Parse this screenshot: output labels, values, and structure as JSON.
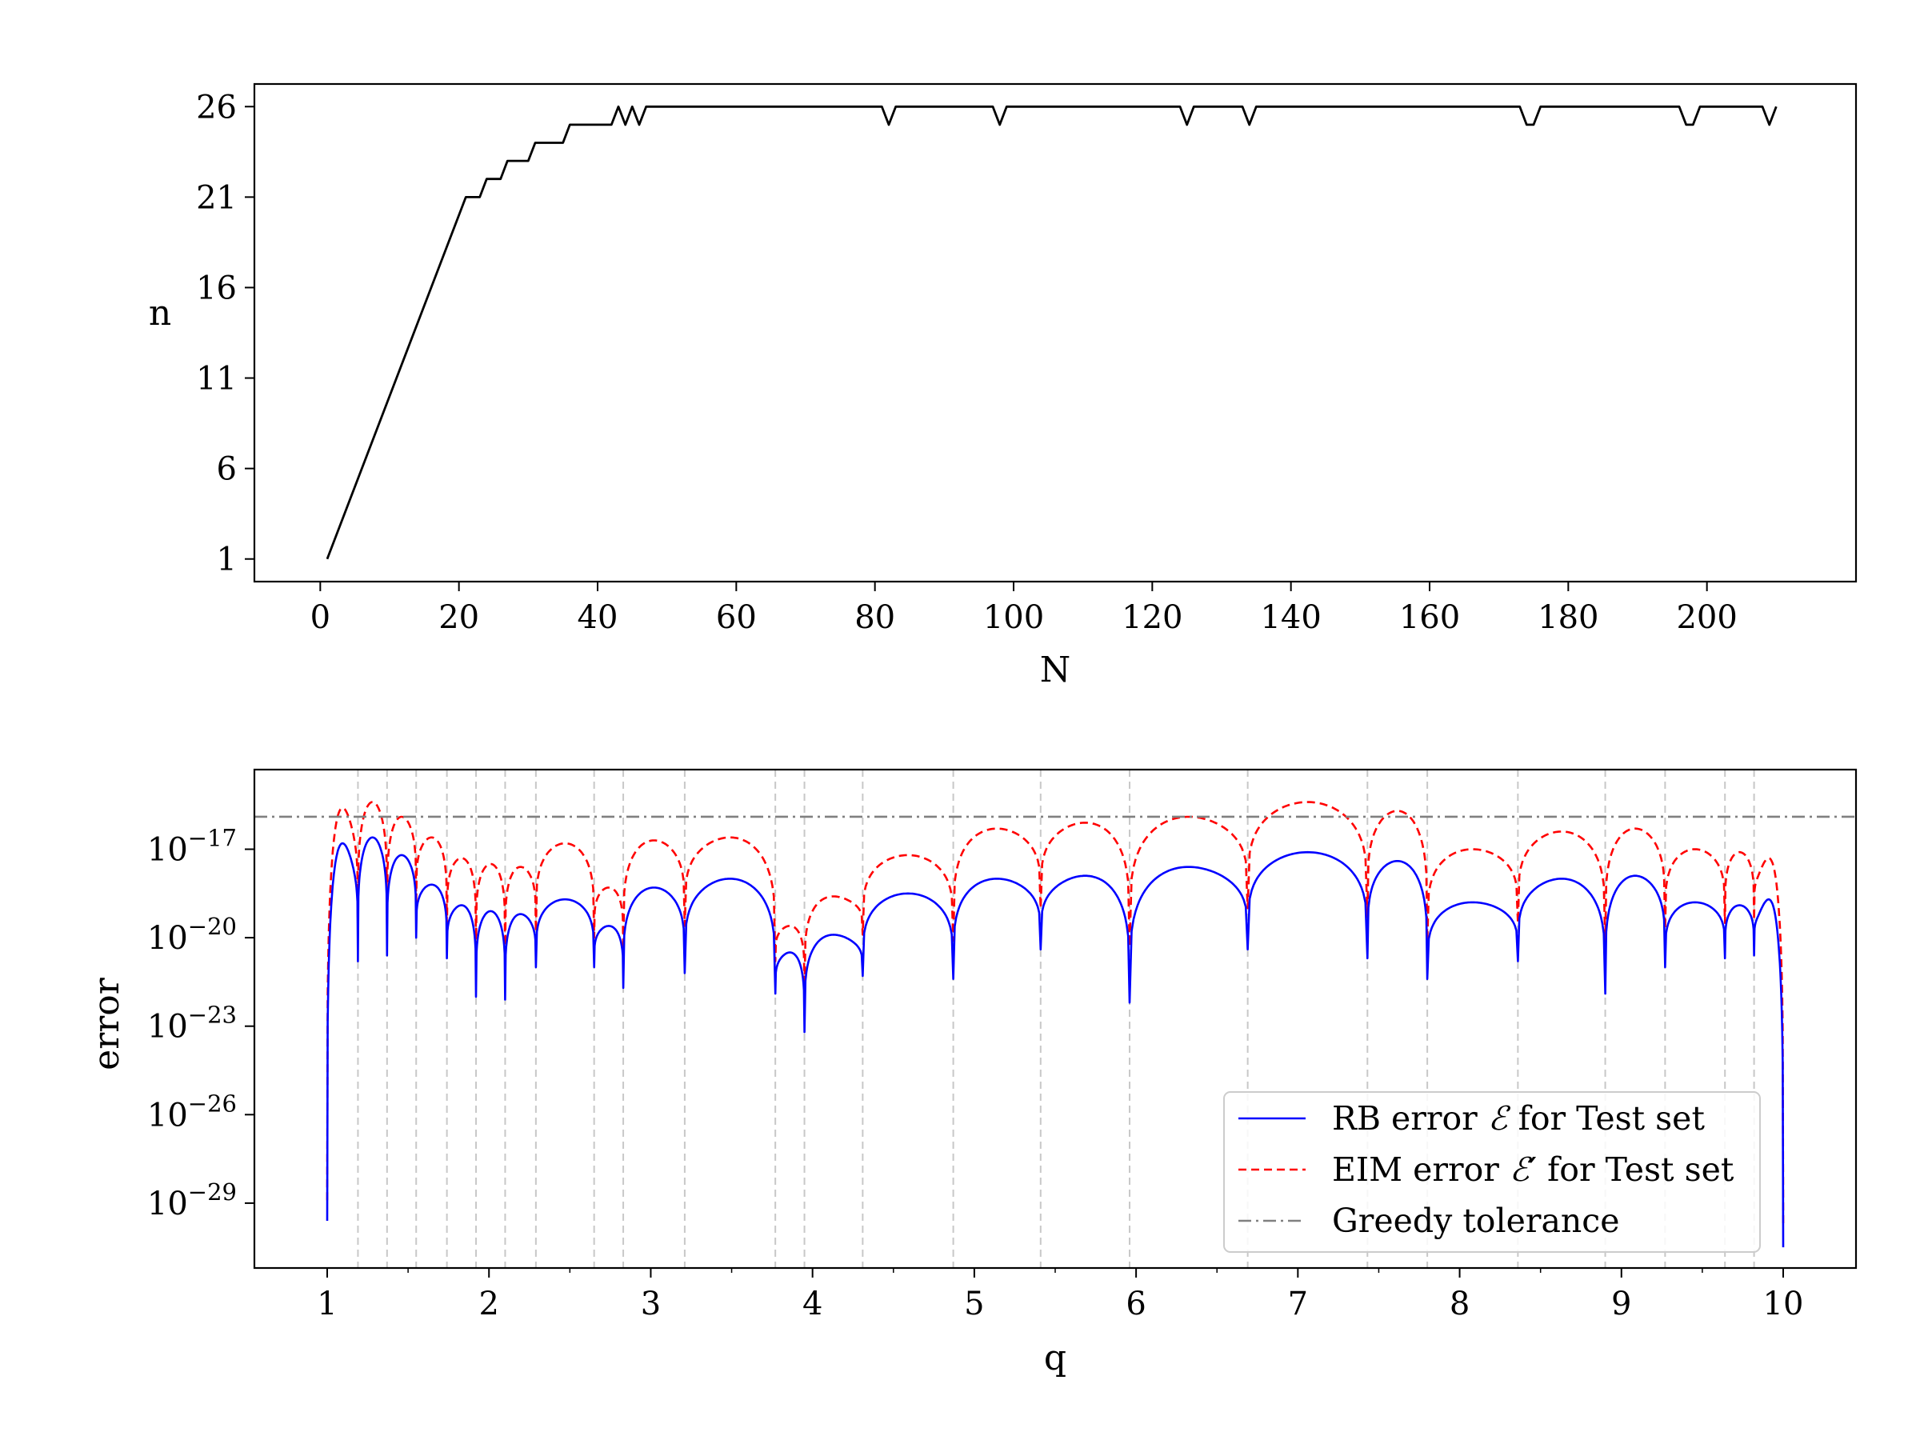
{
  "chart_data": [
    {
      "type": "line",
      "title": "",
      "xlabel": "N",
      "ylabel": "n",
      "xlim": [
        -9.5,
        221.5
      ],
      "ylim": [
        -0.25,
        27.25
      ],
      "xticks": [
        0,
        20,
        40,
        60,
        80,
        100,
        120,
        140,
        160,
        180,
        200
      ],
      "xtick_labels": [
        "0",
        "20",
        "40",
        "60",
        "80",
        "100",
        "120",
        "140",
        "160",
        "180",
        "200"
      ],
      "yticks": [
        1,
        6,
        11,
        16,
        21,
        26
      ],
      "ytick_labels": [
        "1",
        "6",
        "11",
        "16",
        "21",
        "26"
      ],
      "grid": false,
      "series": [
        {
          "color": "#000000",
          "x": [
            1,
            21,
            22,
            23,
            24,
            25,
            26,
            27,
            28,
            29,
            30,
            31,
            32,
            33,
            34,
            35,
            36,
            37,
            38,
            39,
            40,
            41,
            42,
            43,
            44,
            45,
            46,
            47,
            48,
            81,
            82,
            83,
            97,
            98,
            99,
            124,
            125,
            126,
            133,
            134,
            135,
            173,
            174,
            175,
            176,
            196,
            197,
            198,
            199,
            208,
            209,
            210
          ],
          "y": [
            1,
            21,
            21,
            21,
            22,
            22,
            22,
            23,
            23,
            23,
            23,
            24,
            24,
            24,
            24,
            24,
            25,
            25,
            25,
            25,
            25,
            25,
            25,
            26,
            25,
            26,
            25,
            26,
            26,
            26,
            25,
            26,
            26,
            25,
            26,
            26,
            25,
            26,
            26,
            25,
            26,
            26,
            25,
            25,
            26,
            26,
            25,
            25,
            26,
            26,
            25,
            26
          ]
        }
      ]
    },
    {
      "type": "line",
      "title": "",
      "xlabel": "q",
      "ylabel": "error",
      "yscale": "log",
      "xlim": [
        0.55,
        10.45
      ],
      "ylim_log10": [
        -31.2,
        -14.3
      ],
      "xticks": [
        1,
        2,
        3,
        4,
        5,
        6,
        7,
        8,
        9,
        10
      ],
      "xtick_labels": [
        "1",
        "2",
        "3",
        "4",
        "5",
        "6",
        "7",
        "8",
        "9",
        "10"
      ],
      "yticks_log10": [
        -17,
        -20,
        -23,
        -26,
        -29
      ],
      "ytick_base": "10",
      "ytick_exponents": [
        "−17",
        "−20",
        "−23",
        "−26",
        "−29"
      ],
      "grid": false,
      "greedy_points_q": [
        1.19,
        1.37,
        1.55,
        1.74,
        1.92,
        2.1,
        2.29,
        2.65,
        2.83,
        3.21,
        3.77,
        3.95,
        4.31,
        4.87,
        5.41,
        5.96,
        6.69,
        7.43,
        7.8,
        8.36,
        8.9,
        9.27,
        9.64,
        9.82
      ],
      "tolerance_log10": -15.9,
      "rb_error": {
        "start_log10": -29.6,
        "end_log10": -30.5,
        "minima_log10": [
          -20.8,
          -20.6,
          -20.0,
          -20.7,
          -22.0,
          -22.1,
          -21.0,
          -21.0,
          -21.7,
          -21.2,
          -21.9,
          -23.2,
          -21.3,
          -21.4,
          -20.4,
          -22.2,
          -20.4,
          -20.7,
          -21.4,
          -20.8,
          -21.9,
          -21.0,
          -20.7,
          -20.6
        ],
        "maxima_log10": [
          -16.8,
          -16.6,
          -17.2,
          -18.2,
          -18.9,
          -19.1,
          -19.2,
          -18.7,
          -19.6,
          -18.3,
          -18.0,
          -20.5,
          -19.9,
          -18.5,
          -18.0,
          -17.9,
          -17.6,
          -17.1,
          -17.4,
          -18.8,
          -18.0,
          -17.9,
          -18.8,
          -18.9,
          -18.7,
          -17.9
        ]
      },
      "eim_error": {
        "start_log10": -28.9,
        "end_log10": -29.8,
        "minima_log10": [
          -19.9,
          -19.6,
          -18.9,
          -19.7,
          -20.3,
          -20.5,
          -19.8,
          -20.0,
          -20.4,
          -19.6,
          -20.8,
          -21.7,
          -19.9,
          -20.1,
          -19.0,
          -20.3,
          -19.0,
          -19.3,
          -20.1,
          -19.5,
          -20.2,
          -19.7,
          -19.5,
          -19.4
        ],
        "maxima_log10": [
          -15.6,
          -15.4,
          -15.9,
          -16.6,
          -17.3,
          -17.5,
          -17.6,
          -16.8,
          -18.3,
          -16.7,
          -16.6,
          -19.6,
          -18.6,
          -17.2,
          -16.3,
          -16.1,
          -15.9,
          -15.4,
          -15.7,
          -17.0,
          -16.4,
          -16.3,
          -17.0,
          -17.1,
          -17.3,
          -16.0
        ]
      },
      "legend": {
        "location": "lower right",
        "entries": [
          {
            "label_prefix": "RB error ",
            "symbol": "ℰ",
            "prime": "",
            "label_suffix": " for Test set",
            "color": "#0000ff",
            "style": "solid"
          },
          {
            "label_prefix": "EIM error ",
            "symbol": "ℰ",
            "prime": "′",
            "label_suffix": " for Test set",
            "color": "#ff0000",
            "style": "dashed"
          },
          {
            "label_prefix": "Greedy tolerance",
            "symbol": "",
            "prime": "",
            "label_suffix": "",
            "color": "#808080",
            "style": "dashdot"
          }
        ]
      }
    }
  ]
}
